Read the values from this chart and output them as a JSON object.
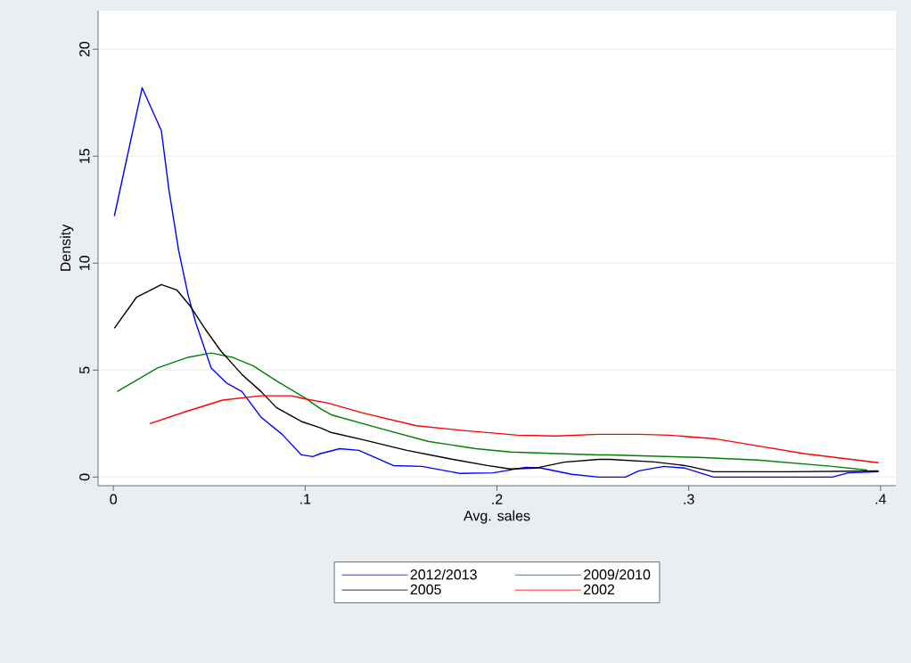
{
  "chart_data": {
    "type": "line",
    "xlabel": "Avg. sales",
    "ylabel": "Density",
    "xlim": [
      -0.008,
      0.408
    ],
    "ylim": [
      -0.4,
      21.8
    ],
    "xticks": [
      0,
      {
        "value": 0.1,
        "label": ".1"
      },
      {
        "value": 0.2,
        "label": ".2"
      },
      {
        "value": 0.3,
        "label": ".3"
      },
      {
        "value": 0.4,
        "label": ".4"
      }
    ],
    "yticks": [
      0,
      5,
      10,
      15,
      20
    ],
    "grid": "y",
    "legend": "bottom",
    "marker": "none",
    "line_style": "solid",
    "series": [
      {
        "name": "2012/2013",
        "color": "#0000ff",
        "x": [
          0.0005,
          0.015,
          0.025,
          0.029,
          0.034,
          0.039,
          0.043,
          0.051,
          0.059,
          0.067,
          0.077,
          0.088,
          0.098,
          0.104,
          0.108,
          0.118,
          0.128,
          0.146,
          0.161,
          0.181,
          0.198,
          0.215,
          0.223,
          0.239,
          0.253,
          0.267,
          0.274,
          0.287,
          0.298,
          0.313,
          0.375,
          0.383,
          0.399
        ],
        "values": [
          12.2,
          18.2,
          16.2,
          13.4,
          10.6,
          8.5,
          7.2,
          5.1,
          4.4,
          4.0,
          2.8,
          2.0,
          1.04,
          0.96,
          1.1,
          1.33,
          1.25,
          0.54,
          0.5,
          0.17,
          0.2,
          0.46,
          0.42,
          0.13,
          0,
          0,
          0.29,
          0.5,
          0.42,
          0,
          0,
          0.2,
          0.25
        ]
      },
      {
        "name": "2009/2010",
        "color": "#008000",
        "x": [
          0.002,
          0.023,
          0.039,
          0.051,
          0.062,
          0.073,
          0.085,
          0.1,
          0.108,
          0.114,
          0.138,
          0.164,
          0.189,
          0.207,
          0.231,
          0.253,
          0.259,
          0.305,
          0.336,
          0.375,
          0.393
        ],
        "values": [
          4.0,
          5.1,
          5.6,
          5.8,
          5.6,
          5.2,
          4.5,
          3.7,
          3.2,
          2.9,
          2.3,
          1.67,
          1.33,
          1.17,
          1.1,
          1.04,
          1.04,
          0.92,
          0.8,
          0.5,
          0.33
        ]
      },
      {
        "name": "2005",
        "color": "#000000",
        "x": [
          0.0005,
          0.012,
          0.025,
          0.033,
          0.04,
          0.048,
          0.056,
          0.067,
          0.077,
          0.085,
          0.098,
          0.108,
          0.113,
          0.13,
          0.153,
          0.177,
          0.195,
          0.207,
          0.22,
          0.235,
          0.253,
          0.259,
          0.282,
          0.298,
          0.313,
          0.352,
          0.399
        ],
        "values": [
          6.96,
          8.4,
          9.0,
          8.75,
          8.0,
          6.9,
          5.9,
          4.8,
          4.0,
          3.25,
          2.6,
          2.3,
          2.1,
          1.75,
          1.25,
          0.83,
          0.54,
          0.38,
          0.42,
          0.7,
          0.83,
          0.83,
          0.71,
          0.54,
          0.25,
          0.25,
          0.29
        ]
      },
      {
        "name": "2002",
        "color": "#ff0000",
        "x": [
          0.019,
          0.039,
          0.057,
          0.077,
          0.093,
          0.099,
          0.112,
          0.13,
          0.158,
          0.18,
          0.211,
          0.231,
          0.253,
          0.274,
          0.29,
          0.313,
          0.336,
          0.36,
          0.399
        ],
        "values": [
          2.5,
          3.1,
          3.6,
          3.8,
          3.8,
          3.67,
          3.46,
          3.0,
          2.4,
          2.2,
          1.96,
          1.92,
          2.0,
          2.0,
          1.96,
          1.8,
          1.46,
          1.1,
          0.67
        ]
      }
    ]
  }
}
